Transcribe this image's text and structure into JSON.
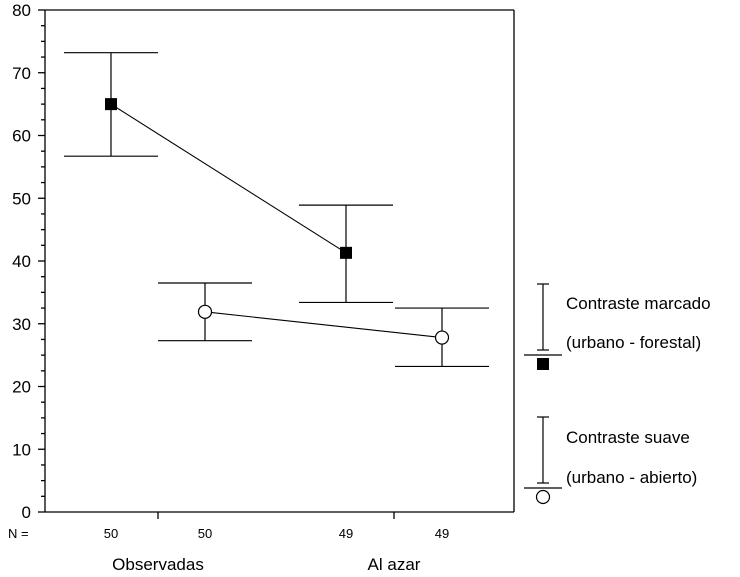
{
  "chart_data": {
    "type": "scatter",
    "title": "",
    "xlabel": "",
    "ylabel": "",
    "ylim": [
      0,
      80
    ],
    "yticks": [
      "0",
      "10",
      "20",
      "30",
      "40",
      "50",
      "60",
      "70",
      "80"
    ],
    "n_prefix": "N =",
    "n_values": [
      "50",
      "50",
      "49",
      "49"
    ],
    "categories": [
      "Observadas",
      "Al azar"
    ],
    "series": [
      {
        "marker": "filled-square",
        "points": [
          {
            "category": "Observadas",
            "mean": 65,
            "lower": 56.7,
            "upper": 73.2
          },
          {
            "category": "Al azar",
            "mean": 41.3,
            "lower": 33.4,
            "upper": 48.9
          }
        ]
      },
      {
        "marker": "open-circle",
        "points": [
          {
            "category": "Observadas",
            "mean": 31.9,
            "lower": 27.3,
            "upper": 36.5
          },
          {
            "category": "Al azar",
            "mean": 27.8,
            "lower": 23.2,
            "upper": 32.5
          }
        ]
      }
    ],
    "legend": [
      {
        "marker": "filled-square",
        "line1": "Contraste marcado",
        "line2": "(urbano - forestal)"
      },
      {
        "marker": "open-circle",
        "line1": "Contraste suave",
        "line2": "(urbano - abierto)"
      }
    ],
    "grid": false
  }
}
